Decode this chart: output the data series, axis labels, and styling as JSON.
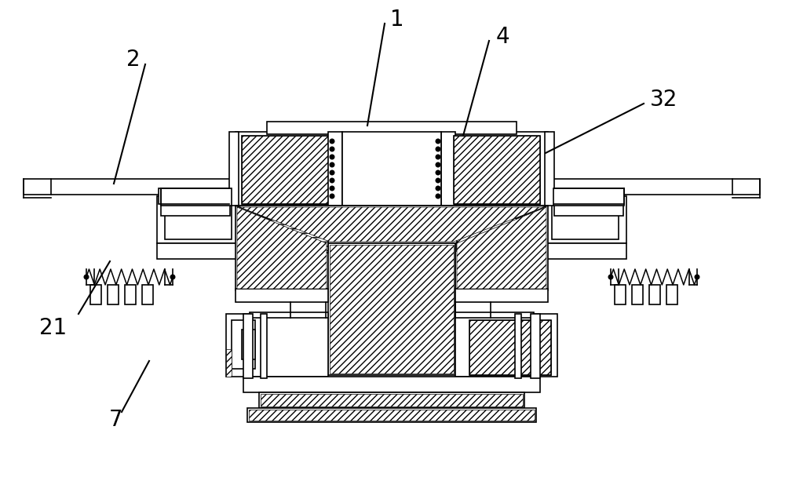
{
  "bg_color": "#ffffff",
  "lw": 1.2,
  "figsize": [
    10.0,
    6.13
  ],
  "dpi": 100,
  "label_fontsize": 20
}
